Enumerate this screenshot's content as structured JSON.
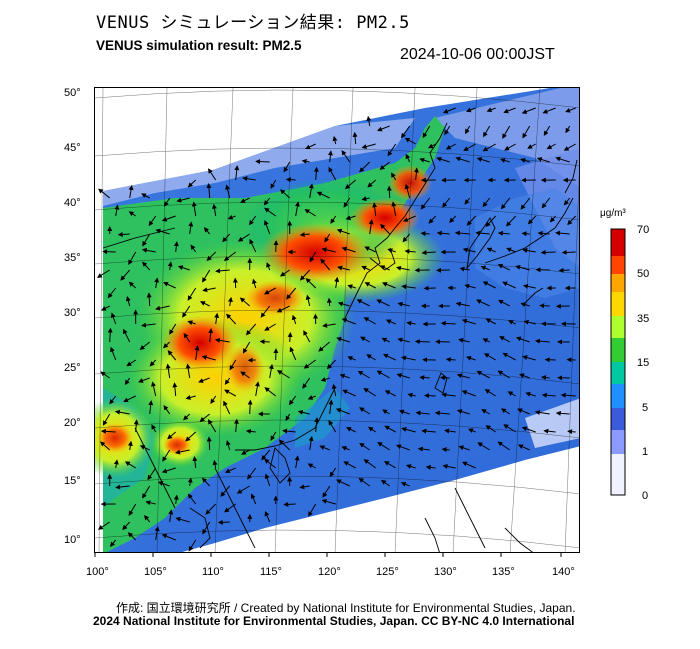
{
  "title_jp": "VENUS シミュレーション結果: PM2.5",
  "title_en": "VENUS simulation result: PM2.5",
  "datetime": "2024-10-06 00:00JST",
  "map": {
    "lon_ticks": [
      "100°",
      "105°",
      "110°",
      "115°",
      "120°",
      "125°",
      "130°",
      "135°",
      "140°"
    ],
    "lat_ticks": [
      "50°",
      "45°",
      "40°",
      "35°",
      "30°",
      "25°",
      "20°",
      "15°",
      "10°"
    ],
    "field": "PM2.5 concentration with wind vectors"
  },
  "colorbar": {
    "unit": "μg/m³",
    "labels": [
      "70",
      "50",
      "35",
      "15",
      "5",
      "1",
      "0"
    ],
    "colors": [
      "#d40000",
      "#ff4500",
      "#ffa500",
      "#ffd700",
      "#adff2f",
      "#32cd32",
      "#00c8a0",
      "#1e90ff",
      "#3c5adc",
      "#8c9bff",
      "#ffffff"
    ]
  },
  "credits": {
    "line1": "作成: 国立環境研究所 / Created by National Institute for Environmental Studies, Japan.",
    "line2": "2024 National Institute for Environmental Studies, Japan. CC BY-NC 4.0 International"
  }
}
